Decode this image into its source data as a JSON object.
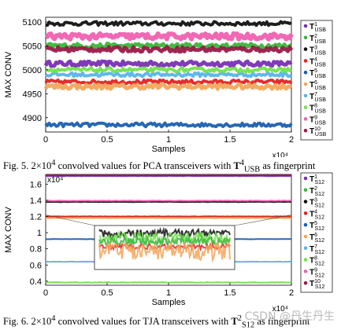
{
  "figures": [
    {
      "caption_prefix": "Fig. 5.",
      "caption_value": "2×10",
      "caption_exp": "4",
      "caption_mid": " convolved values for PCA transceivers with ",
      "caption_sym": "T",
      "caption_sup": "4",
      "caption_sub": "USB",
      "caption_end": " as fingerprint"
    },
    {
      "caption_prefix": "Fig. 6.",
      "caption_value": "2×10",
      "caption_exp": "4",
      "caption_mid": " convolved values for TJA transceivers with ",
      "caption_sym": "T",
      "caption_sup": "2",
      "caption_sub": "S12",
      "caption_end": " as fingerprint"
    }
  ],
  "watermark": "CSDN @丹生丹生",
  "chart_data": [
    {
      "type": "scatter",
      "ylabel": "MAX CONV",
      "xlabel": "Samples",
      "x_multiplier": "x10⁴",
      "xlim": [
        0,
        2
      ],
      "ylim": [
        4870,
        5110
      ],
      "xticks": [
        "0",
        "0.5",
        "1",
        "1.5",
        "2"
      ],
      "yticks": [
        "4900",
        "4950",
        "5000",
        "5050",
        "5100"
      ],
      "legend_position": "right",
      "series": [
        {
          "sym": "T",
          "sup": "1",
          "sub": "USB",
          "color": "#7a2fb5",
          "level": 5013,
          "spread": 5
        },
        {
          "sym": "T",
          "sup": "2",
          "sub": "USB",
          "color": "#3ab53a",
          "level": 5050,
          "spread": 5
        },
        {
          "sym": "T",
          "sup": "3",
          "sub": "USB",
          "color": "#111111",
          "level": 5097,
          "spread": 4
        },
        {
          "sym": "T",
          "sup": "4",
          "sub": "USB",
          "color": "#e32222",
          "level": 4975,
          "spread": 4
        },
        {
          "sym": "T",
          "sup": "5",
          "sub": "USB",
          "color": "#1a5fb0",
          "level": 4885,
          "spread": 4
        },
        {
          "sym": "T",
          "sup": "6",
          "sub": "USB",
          "color": "#f2a65a",
          "level": 4965,
          "spread": 5
        },
        {
          "sym": "T",
          "sup": "7",
          "sub": "USB",
          "color": "#56b4e9",
          "level": 4990,
          "spread": 4
        },
        {
          "sym": "T",
          "sup": "8",
          "sub": "USB",
          "color": "#6fe34a",
          "level": 5000,
          "spread": 4
        },
        {
          "sym": "T",
          "sup": "9",
          "sub": "USB",
          "color": "#f060b0",
          "level": 5070,
          "spread": 6
        },
        {
          "sym": "T",
          "sup": "10",
          "sub": "USB",
          "color": "#9b1a4a",
          "level": 5043,
          "spread": 5
        }
      ]
    },
    {
      "type": "scatter",
      "ylabel": "MAX CONV",
      "xlabel": "Samples",
      "x_multiplier": "x10⁴",
      "y_multiplier": "x10⁴",
      "xlim": [
        0,
        2
      ],
      "ylim": [
        0.35,
        1.72
      ],
      "xticks": [
        "0",
        "0.5",
        "1",
        "1.5",
        "2"
      ],
      "yticks": [
        "0.4",
        "0.6",
        "0.8",
        "1",
        "1.2",
        "1.4",
        "1.6"
      ],
      "legend_position": "right",
      "inset": "zoom of the 1.2 band",
      "series": [
        {
          "sym": "T",
          "sup": "1",
          "sub": "S12",
          "color": "#7a2fb5",
          "level": 1.7,
          "spread": 0.002
        },
        {
          "sym": "T",
          "sup": "2",
          "sub": "S12",
          "color": "#3ab53a",
          "level": 1.2,
          "spread": 0.002
        },
        {
          "sym": "T",
          "sup": "3",
          "sub": "S12",
          "color": "#111111",
          "level": 1.38,
          "spread": 0.002
        },
        {
          "sym": "T",
          "sup": "4",
          "sub": "S12",
          "color": "#e32222",
          "level": 1.2,
          "spread": 0.002
        },
        {
          "sym": "T",
          "sup": "5",
          "sub": "S12",
          "color": "#1a5fb0",
          "level": 0.92,
          "spread": 0.002
        },
        {
          "sym": "T",
          "sup": "6",
          "sub": "S12",
          "color": "#f2a65a",
          "level": 1.18,
          "spread": 0.002
        },
        {
          "sym": "T",
          "sup": "7",
          "sub": "S12",
          "color": "#56b4e9",
          "level": 0.64,
          "spread": 0.002
        },
        {
          "sym": "T",
          "sup": "8",
          "sub": "S12",
          "color": "#6fe34a",
          "level": 0.385,
          "spread": 0.003
        },
        {
          "sym": "T",
          "sup": "9",
          "sub": "S12",
          "color": "#f060b0",
          "level": 1.395,
          "spread": 0.002
        },
        {
          "sym": "T",
          "sup": "10",
          "sub": "S12",
          "color": "#9b1a4a",
          "level": 1.71,
          "spread": 0.002
        }
      ]
    }
  ]
}
